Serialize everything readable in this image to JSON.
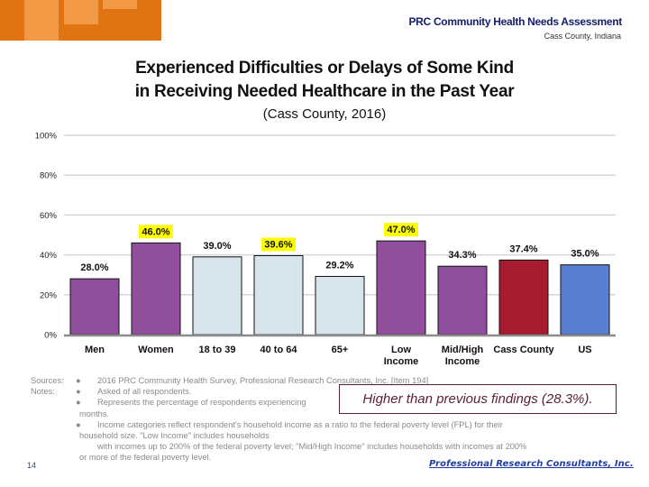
{
  "header": {
    "title": "PRC Community Health Needs Assessment",
    "subtitle": "Cass County, Indiana"
  },
  "chart_title": {
    "line1": "Experienced Difficulties or Delays of Some Kind",
    "line2": "in Receiving Needed Healthcare in the Past Year",
    "subtitle": "(Cass County, 2016)"
  },
  "colors": {
    "purple": "#8f4f9c",
    "light_blue": "#d8e4eb",
    "dark_red": "#a51c30",
    "blue": "#5a7fd1",
    "highlight": "#ffff00",
    "callout": "#5b1f2e",
    "banner_orange": "#e07412"
  },
  "chart_data": {
    "type": "bar",
    "title": "Experienced Difficulties or Delays of Some Kind in Receiving Needed Healthcare in the Past Year",
    "subtitle": "(Cass County, 2016)",
    "xlabel": "",
    "ylabel": "",
    "ylim": [
      0,
      100
    ],
    "yticks": [
      0,
      20,
      40,
      60,
      80,
      100
    ],
    "ytick_labels": [
      "0%",
      "20%",
      "40%",
      "60%",
      "80%",
      "100%"
    ],
    "grid": true,
    "legend": "none",
    "categories": [
      "Men",
      "Women",
      "18 to 39",
      "40 to 64",
      "65+",
      "Low Income",
      "Mid/High Income",
      "Cass County",
      "US"
    ],
    "category_lines": [
      [
        "Men"
      ],
      [
        "Women"
      ],
      [
        "18 to 39"
      ],
      [
        "40 to 64"
      ],
      [
        "65+"
      ],
      [
        "Low",
        "Income"
      ],
      [
        "Mid/High",
        "Income"
      ],
      [
        "Cass County"
      ],
      [
        "US"
      ]
    ],
    "values": [
      28.0,
      46.0,
      39.0,
      39.6,
      29.2,
      47.0,
      34.3,
      37.4,
      35.0
    ],
    "value_labels": [
      "28.0%",
      "46.0%",
      "39.0%",
      "39.6%",
      "29.2%",
      "47.0%",
      "34.3%",
      "37.4%",
      "35.0%"
    ],
    "bar_colors": [
      "purple",
      "purple",
      "light_blue",
      "light_blue",
      "light_blue",
      "purple",
      "purple",
      "dark_red",
      "blue"
    ],
    "highlighted_labels": [
      false,
      true,
      false,
      true,
      false,
      true,
      false,
      false,
      false
    ]
  },
  "footnotes": {
    "sources_label": "Sources:",
    "notes_label": "Notes:",
    "bullet": "●",
    "lines": [
      "2016 PRC Community Health Survey, Professional Research Consultants, Inc. [Item 194]",
      "Asked of all respondents.",
      "Represents the percentage of respondents experiencing",
      "months.",
      "Income categories reflect respondent's household income as a ratio to the federal poverty level (FPL) for their",
      "household size.  \"Low Income\" includes households",
      "with incomes up to 200% of the federal poverty level;  \"Mid/High Income\" includes households with incomes at 200%",
      "or more of the federal poverty level."
    ]
  },
  "callout": "Higher than previous findings (28.3%).",
  "page_number": "14",
  "footer_logo": "Professional Research Consultants, Inc."
}
